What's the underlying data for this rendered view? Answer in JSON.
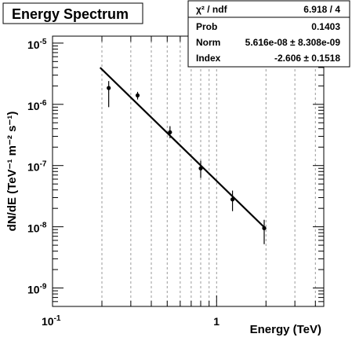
{
  "chart_data": {
    "type": "scatter",
    "title": "Energy Spectrum",
    "xlabel": "Energy (TeV)",
    "ylabel": "dN/dE (TeV⁻¹ m⁻² s⁻¹)",
    "xscale": "log",
    "yscale": "log",
    "xlim": [
      0.1,
      4.5
    ],
    "ylim": [
      5e-10,
      1.3e-05
    ],
    "grid": "x-only dashed",
    "x_tick_labels": [
      {
        "value": 0.1,
        "base": "10",
        "exp": "-1"
      },
      {
        "value": 1,
        "label": "1"
      }
    ],
    "y_tick_labels": [
      {
        "value": 1e-05,
        "base": "10",
        "exp": "-5"
      },
      {
        "value": 1e-06,
        "base": "10",
        "exp": "-6"
      },
      {
        "value": 1e-07,
        "base": "10",
        "exp": "-7"
      },
      {
        "value": 1e-08,
        "base": "10",
        "exp": "-8"
      },
      {
        "value": 1e-09,
        "base": "10",
        "exp": "-9"
      }
    ],
    "series": [
      {
        "points": [
          {
            "x": 0.22,
            "y": 1.85e-06,
            "ylo": 9e-07,
            "yhi": 2.4e-06
          },
          {
            "x": 0.33,
            "y": 1.4e-06,
            "ylo": 1.2e-06,
            "yhi": 1.6e-06
          },
          {
            "x": 0.52,
            "y": 3.5e-07,
            "ylo": 2.8e-07,
            "yhi": 4.4e-07
          },
          {
            "x": 0.8,
            "y": 9e-08,
            "ylo": 6.3e-08,
            "yhi": 1.2e-07
          },
          {
            "x": 1.25,
            "y": 2.8e-08,
            "ylo": 1.8e-08,
            "yhi": 3.9e-08
          },
          {
            "x": 1.95,
            "y": 9.5e-09,
            "ylo": 5.2e-09,
            "yhi": 1.3e-08
          }
        ]
      }
    ],
    "fit_line": {
      "norm": 5.616e-08,
      "index": -2.606,
      "x_range": [
        0.195,
        2.0
      ]
    },
    "stats_box": {
      "rows": [
        {
          "label": "χ² / ndf",
          "value": "6.918 / 4"
        },
        {
          "label": "Prob",
          "value": "0.1403"
        },
        {
          "label": "Norm",
          "value": "5.616e-08 ± 8.308e-09"
        },
        {
          "label": "Index",
          "value": "-2.606 ± 0.1518"
        }
      ]
    }
  }
}
